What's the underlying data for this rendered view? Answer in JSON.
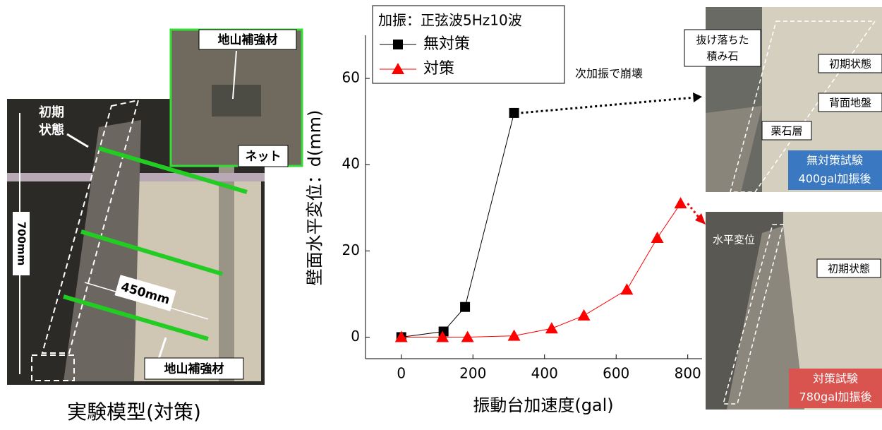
{
  "chart_data": {
    "type": "line",
    "legend_title": "加振：正弦波5Hz10波",
    "x_label": "振動台加速度(gal)",
    "y_label": "壁面水平変位：d(mm)",
    "xlim": [
      -100,
      840
    ],
    "ylim": [
      -5,
      70
    ],
    "xticks": [
      0,
      200,
      400,
      600,
      800
    ],
    "yticks": [
      0,
      20,
      40,
      60
    ],
    "series": [
      {
        "name": "無対策",
        "color": "#000000",
        "marker": "square",
        "x": [
          0,
          118,
          178,
          315
        ],
        "values": [
          0,
          1.3,
          7,
          52
        ]
      },
      {
        "name": "対策",
        "color": "#ff0000",
        "marker": "triangle",
        "x": [
          0,
          115,
          185,
          315,
          420,
          510,
          630,
          715,
          780
        ],
        "values": [
          0,
          0,
          0,
          0.3,
          2,
          5,
          11,
          23,
          31
        ]
      }
    ],
    "annotations": [
      {
        "text": "次加振で崩壊"
      }
    ]
  },
  "left_photo": {
    "caption": "実験模型(対策)",
    "top_label": "地山補強材",
    "net_label": "ネット",
    "initial_state": [
      "初期",
      "状態"
    ],
    "height_label": "700mm",
    "length_label": "450mm",
    "bottom_label": "地山補強材"
  },
  "right_top_photo": {
    "fallen_stones": [
      "抜け落ちた",
      "積み石"
    ],
    "initial_state": "初期状態",
    "back_ground": "背面地盤",
    "gravel_layer": "栗石層",
    "result": [
      "無対策試験",
      "400gal加振後"
    ]
  },
  "right_bottom_photo": {
    "horizontal_disp": "水平変位",
    "initial_state": "初期状態",
    "result": [
      "対策試験",
      "780gal加振後"
    ]
  }
}
